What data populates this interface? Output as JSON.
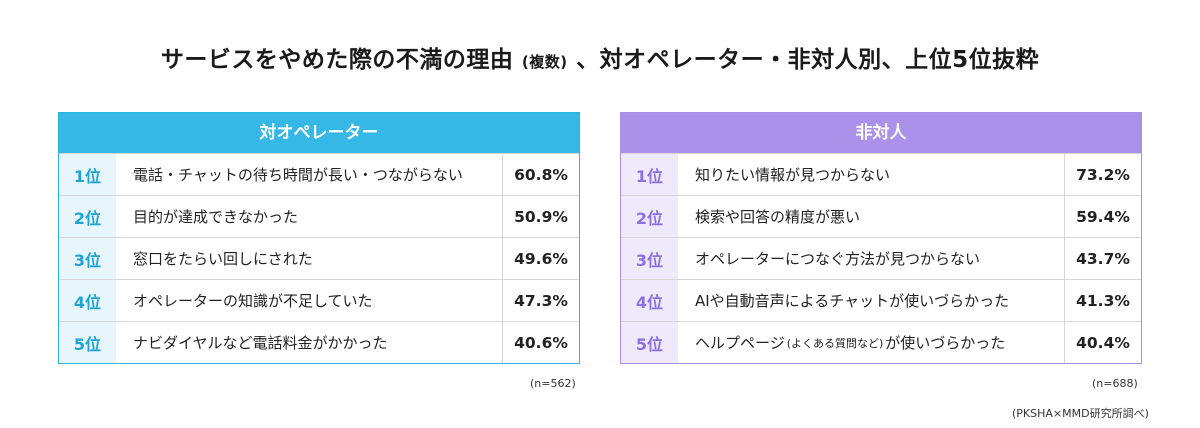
{
  "chart_data": {
    "type": "table",
    "title": "サービスをやめた際の不満の理由",
    "title_note": "(複数)",
    "title_suffix": "、対オペレーター・非対人別、上位5位抜粋",
    "left": {
      "header": "対オペレーター",
      "rows": [
        {
          "rank": "1位",
          "label": "電話・チャットの待ち時間が長い・つながらない",
          "value": "60.8%"
        },
        {
          "rank": "2位",
          "label": "目的が達成できなかった",
          "value": "50.9%"
        },
        {
          "rank": "3位",
          "label": "窓口をたらい回しにされた",
          "value": "49.6%"
        },
        {
          "rank": "4位",
          "label": "オペレーターの知識が不足していた",
          "value": "47.3%"
        },
        {
          "rank": "5位",
          "label": "ナビダイヤルなど電話料金がかかった",
          "value": "40.6%"
        }
      ],
      "n": "(n=562)"
    },
    "right": {
      "header": "非対人",
      "rows": [
        {
          "rank": "1位",
          "label": "知りたい情報が見つからない",
          "value": "73.2%"
        },
        {
          "rank": "2位",
          "label": "検索や回答の精度が悪い",
          "value": "59.4%"
        },
        {
          "rank": "3位",
          "label": "オペレーターにつなぐ方法が見つからない",
          "value": "43.7%"
        },
        {
          "rank": "4位",
          "label": "AIや自動音声によるチャットが使いづらかった",
          "value": "41.3%"
        },
        {
          "rank": "5位",
          "label_main": "ヘルプページ",
          "label_note": "(よくある質問など)",
          "label_tail": "が使いづらかった",
          "value": "40.4%"
        }
      ],
      "n": "(n=688)"
    },
    "source": "(PKSHA×MMD研究所調べ)"
  }
}
